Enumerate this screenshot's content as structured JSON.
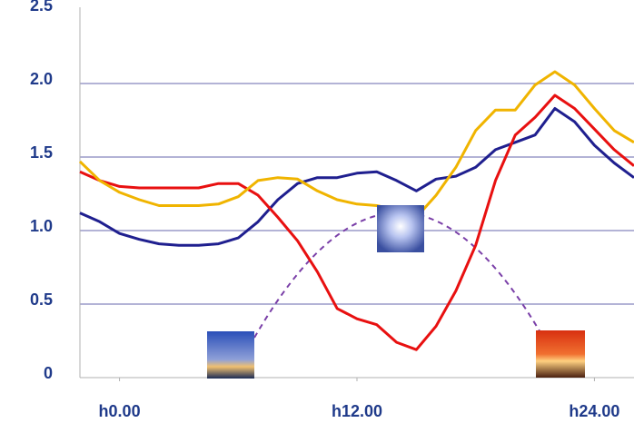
{
  "chart_data": {
    "type": "line",
    "x": [
      -2,
      -1,
      0,
      1,
      2,
      3,
      4,
      5,
      6,
      7,
      8,
      9,
      10,
      11,
      12,
      13,
      14,
      15,
      16,
      17,
      18,
      19,
      20,
      21,
      22,
      23,
      24,
      25,
      26
    ],
    "series": [
      {
        "color": "#1f1f8f",
        "values": [
          1.12,
          1.06,
          0.98,
          0.94,
          0.91,
          0.9,
          0.9,
          0.91,
          0.95,
          1.06,
          1.21,
          1.32,
          1.36,
          1.36,
          1.39,
          1.4,
          1.34,
          1.27,
          1.35,
          1.37,
          1.43,
          1.55,
          1.6,
          1.65,
          1.83,
          1.74,
          1.58,
          1.46,
          1.36
        ]
      },
      {
        "color": "#e81010",
        "values": [
          1.4,
          1.34,
          1.3,
          1.29,
          1.29,
          1.29,
          1.29,
          1.32,
          1.32,
          1.24,
          1.09,
          0.93,
          0.72,
          0.47,
          0.4,
          0.36,
          0.24,
          0.19,
          0.35,
          0.59,
          0.9,
          1.34,
          1.65,
          1.77,
          1.92,
          1.83,
          1.69,
          1.55,
          1.44
        ]
      },
      {
        "color": "#f0b400",
        "values": [
          1.47,
          1.34,
          1.26,
          1.21,
          1.17,
          1.17,
          1.17,
          1.18,
          1.23,
          1.34,
          1.36,
          1.35,
          1.27,
          1.21,
          1.18,
          1.17,
          1.14,
          1.09,
          1.24,
          1.43,
          1.68,
          1.82,
          1.82,
          1.99,
          2.08,
          1.99,
          1.83,
          1.68,
          1.6
        ]
      }
    ],
    "xlim": [
      -2,
      26
    ],
    "xticks": [
      {
        "value": 0,
        "label": "h0.00"
      },
      {
        "value": 12,
        "label": "h12.00"
      },
      {
        "value": 24,
        "label": "h24.00"
      }
    ],
    "ylim": [
      0,
      2.5
    ],
    "yticks": [
      0,
      0.5,
      {
        "value": 1,
        "label": "1.0"
      },
      1.5,
      {
        "value": 2,
        "label": "2.0"
      },
      2.5
    ],
    "grid": true
  }
}
